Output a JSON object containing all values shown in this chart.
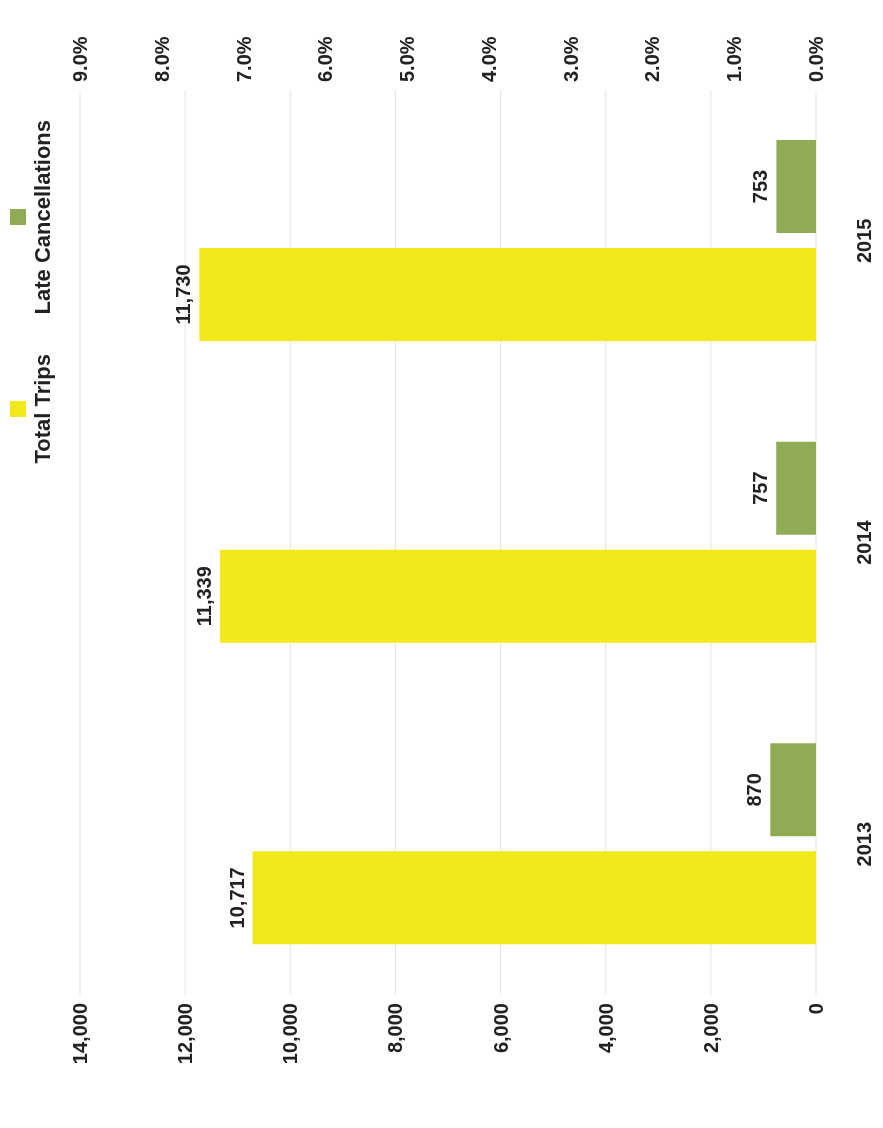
{
  "chart_data": {
    "type": "bar",
    "orientation": "horizontal",
    "categories": [
      "2015",
      "2014",
      "2013"
    ],
    "series": [
      {
        "name": "Late Cancellations",
        "color": "#8fac55",
        "values": [
          753,
          757,
          870
        ],
        "value_labels": [
          "753",
          "757",
          "870"
        ]
      },
      {
        "name": "Total Trips",
        "color": "#f2e81a",
        "values": [
          11730,
          11339,
          10717
        ],
        "value_labels": [
          "11,730",
          "11,339",
          "10,717"
        ]
      }
    ],
    "xlim": [
      14000,
      0
    ],
    "xticks": [
      0,
      {
        "value": 2000,
        "label": "2,000"
      },
      {
        "value": 4000,
        "label": "4,000"
      },
      {
        "value": 6000,
        "label": "6,000"
      },
      {
        "value": 8000,
        "label": "8,000"
      },
      {
        "value": 10000,
        "label": "10,000"
      },
      {
        "value": 12000,
        "label": "12,000"
      },
      {
        "value": 14000,
        "label": "14,000"
      }
    ],
    "x2lim": [
      9,
      0
    ],
    "x2ticks": [
      {
        "value": 0,
        "label": "0.0%"
      },
      {
        "value": 1,
        "label": "1.0%"
      },
      {
        "value": 2,
        "label": "2.0%"
      },
      {
        "value": 3,
        "label": "3.0%"
      },
      {
        "value": 4,
        "label": "4.0%"
      },
      {
        "value": 5,
        "label": "5.0%"
      },
      {
        "value": 6,
        "label": "6.0%"
      },
      {
        "value": 7,
        "label": "7.0%"
      },
      {
        "value": 8,
        "label": "8.0%"
      },
      {
        "value": 9,
        "label": "9.0%"
      }
    ],
    "grid": "x",
    "legend": "left"
  }
}
